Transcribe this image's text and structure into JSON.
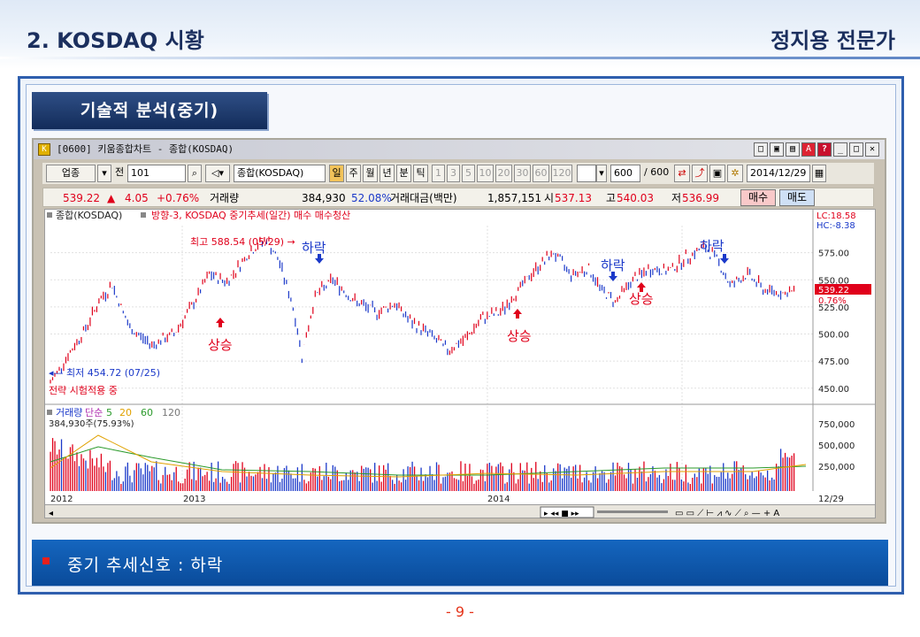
{
  "slide": {
    "title": "2. KOSDAQ 시황",
    "subtitle": "정지용 전문가",
    "section_label": "기술적 분석(중기)",
    "signal_text": "중기 추세신호 : 하락",
    "page_number": "- 9 -"
  },
  "window": {
    "title": "[0600] 키움종합차트 - 종합(KOSDAQ)",
    "app_icon": "app-icon",
    "title_buttons": [
      "□",
      "▣",
      "▤",
      "A",
      "?",
      "_",
      "□",
      "✕"
    ]
  },
  "toolbar": {
    "industry": "업종",
    "prev_label": "전",
    "code": "101",
    "name": "종합(KOSDAQ)",
    "periods": [
      "일",
      "주",
      "월",
      "년",
      "분",
      "틱"
    ],
    "intervals": [
      "1",
      "3",
      "5",
      "10",
      "20",
      "30",
      "60",
      "120"
    ],
    "count_value": "600",
    "count_total": "/ 600",
    "date": "2014/12/29"
  },
  "quote": {
    "price": "539.22",
    "change": "4.05",
    "change_pct": "+0.76%",
    "volume_label": "거래량",
    "volume": "384,930",
    "volume_ratio": "52.08%",
    "amount_label": "거래대금(백만)",
    "amount": "1,857,151",
    "open_label": "시",
    "open": "537.13",
    "high_label": "고",
    "high": "540.03",
    "low_label": "저",
    "low": "536.99",
    "buy_label": "매수",
    "sell_label": "매도"
  },
  "legend": {
    "series_name": "종합(KOSDAQ)",
    "strategy_text": "방향-3, KOSDAQ 중기추세(일간) 매수 매수청산",
    "lc": "LC:18.58",
    "hc": "HC:-8.38",
    "high_annotation": "최고 588.54 (05/29)",
    "low_annotation": "최저 454.72 (07/25)",
    "strategy_note": "전략 시험적용 중",
    "price_label": "539.22",
    "pct_label": "0.76%",
    "volume_legend": [
      "거래량",
      "단순",
      "5",
      "20",
      "60",
      "120"
    ],
    "volume_value": "384,930주(75.93%)",
    "end_date": "12/29"
  },
  "signals": [
    {
      "label": "상승",
      "type": "up"
    },
    {
      "label": "하락",
      "type": "down"
    },
    {
      "label": "상승",
      "type": "up"
    },
    {
      "label": "하락",
      "type": "down"
    },
    {
      "label": "상승",
      "type": "up"
    },
    {
      "label": "하락",
      "type": "down"
    }
  ],
  "colors": {
    "up": "#e0001b",
    "down": "#1b39c9",
    "header_blue": "#1b2f5e",
    "signal_bar": "#1566bf"
  },
  "chart_data": {
    "type": "line",
    "x_labels": [
      "2012",
      "2013",
      "2014"
    ],
    "price_ticks": [
      "575.00",
      "550.00",
      "525.00",
      "500.00",
      "475.00",
      "450.00"
    ],
    "volume_ticks": [
      "750,000",
      "500,000",
      "250,000"
    ],
    "ylim": [
      440,
      600
    ],
    "price_series": [
      {
        "x": 0,
        "y": 455
      },
      {
        "x": 20,
        "y": 480
      },
      {
        "x": 40,
        "y": 505
      },
      {
        "x": 55,
        "y": 530
      },
      {
        "x": 70,
        "y": 545
      },
      {
        "x": 90,
        "y": 505
      },
      {
        "x": 115,
        "y": 490
      },
      {
        "x": 140,
        "y": 500
      },
      {
        "x": 160,
        "y": 525
      },
      {
        "x": 180,
        "y": 555
      },
      {
        "x": 200,
        "y": 548
      },
      {
        "x": 225,
        "y": 575
      },
      {
        "x": 245,
        "y": 588
      },
      {
        "x": 260,
        "y": 565
      },
      {
        "x": 275,
        "y": 525
      },
      {
        "x": 285,
        "y": 480
      },
      {
        "x": 300,
        "y": 535
      },
      {
        "x": 320,
        "y": 550
      },
      {
        "x": 345,
        "y": 530
      },
      {
        "x": 370,
        "y": 520
      },
      {
        "x": 390,
        "y": 528
      },
      {
        "x": 410,
        "y": 510
      },
      {
        "x": 430,
        "y": 500
      },
      {
        "x": 450,
        "y": 485
      },
      {
        "x": 470,
        "y": 495
      },
      {
        "x": 490,
        "y": 515
      },
      {
        "x": 510,
        "y": 520
      },
      {
        "x": 530,
        "y": 540
      },
      {
        "x": 550,
        "y": 560
      },
      {
        "x": 570,
        "y": 575
      },
      {
        "x": 590,
        "y": 555
      },
      {
        "x": 610,
        "y": 560
      },
      {
        "x": 625,
        "y": 540
      },
      {
        "x": 640,
        "y": 530
      },
      {
        "x": 660,
        "y": 550
      },
      {
        "x": 680,
        "y": 560
      },
      {
        "x": 700,
        "y": 558
      },
      {
        "x": 720,
        "y": 570
      },
      {
        "x": 740,
        "y": 580
      },
      {
        "x": 755,
        "y": 570
      },
      {
        "x": 770,
        "y": 545
      },
      {
        "x": 790,
        "y": 555
      },
      {
        "x": 810,
        "y": 540
      },
      {
        "x": 830,
        "y": 538
      },
      {
        "x": 845,
        "y": 539
      }
    ]
  }
}
